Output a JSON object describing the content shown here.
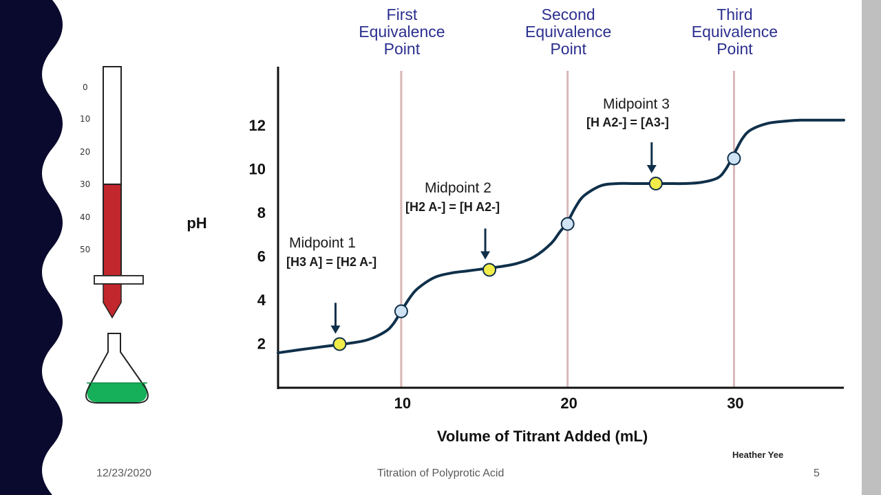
{
  "slide": {
    "date": "12/23/2020",
    "title": "Titration of Polyprotic Acid",
    "page_number": "5",
    "credit": "Heather Yee"
  },
  "colors": {
    "side_band": "#0a0a2e",
    "right_bar": "#bfbfbf",
    "curve": "#10304a",
    "midpoint_fill": "#f2ec4a",
    "equivalence_fill": "#cfe3f5",
    "heading_blue": "#2b2f8f",
    "burette_liquid": "#c1272d",
    "flask_liquid": "#17b05a",
    "guide_line": "#d7b7b7"
  },
  "burette": {
    "scale_labels": [
      "0",
      "10",
      "20",
      "30",
      "40",
      "50"
    ],
    "fill_level_ml": 30
  },
  "chart_data": {
    "type": "line",
    "title": "",
    "xlabel": "Volume of Titrant Added (mL)",
    "ylabel": "pH",
    "xlim": [
      2.6,
      36.6
    ],
    "ylim": [
      0,
      14.7
    ],
    "x_ticks": [
      "10",
      "20",
      "30"
    ],
    "y_ticks": [
      "2",
      "4",
      "6",
      "8",
      "10",
      "12"
    ],
    "series": [
      {
        "x": [
          2.6,
          4,
          5,
          6,
          7,
          8,
          9,
          9.5,
          10,
          10.5,
          11,
          12,
          13,
          14,
          15,
          16,
          17,
          18,
          19,
          19.5,
          20,
          20.5,
          21,
          22,
          23,
          24,
          25,
          26,
          27,
          28,
          29,
          29.5,
          30,
          30.5,
          31,
          32,
          33,
          34,
          35,
          36.6
        ],
        "y": [
          1.6,
          1.75,
          1.85,
          1.95,
          2.05,
          2.2,
          2.55,
          2.9,
          3.5,
          4.1,
          4.55,
          5.05,
          5.25,
          5.35,
          5.45,
          5.55,
          5.7,
          6.0,
          6.6,
          7.1,
          7.6,
          8.3,
          8.8,
          9.25,
          9.35,
          9.35,
          9.35,
          9.35,
          9.35,
          9.4,
          9.6,
          10.0,
          10.7,
          11.4,
          11.8,
          12.1,
          12.2,
          12.25,
          12.25,
          12.25
        ]
      }
    ],
    "equivalence_lines": [
      {
        "x": 10,
        "label": [
          "First",
          "Equivalence",
          "Point"
        ]
      },
      {
        "x": 20,
        "label": [
          "Second",
          "Equivalence",
          "Point"
        ]
      },
      {
        "x": 30,
        "label": [
          "Third",
          "Equivalence",
          "Point"
        ]
      }
    ],
    "equivalence_points": [
      {
        "x": 10,
        "y": 3.5
      },
      {
        "x": 20,
        "y": 7.5
      },
      {
        "x": 30,
        "y": 10.5
      }
    ],
    "midpoints": [
      {
        "x": 6.3,
        "y": 2.0,
        "label": "Midpoint 1",
        "equation": "[H3 A] = [H2 A-]"
      },
      {
        "x": 15.3,
        "y": 5.4,
        "label": "Midpoint 2",
        "equation": "[H2 A-] = [H A2-]"
      },
      {
        "x": 25.3,
        "y": 9.35,
        "label": "Midpoint 3",
        "equation": "[H A2-] = [A3-]"
      }
    ]
  }
}
